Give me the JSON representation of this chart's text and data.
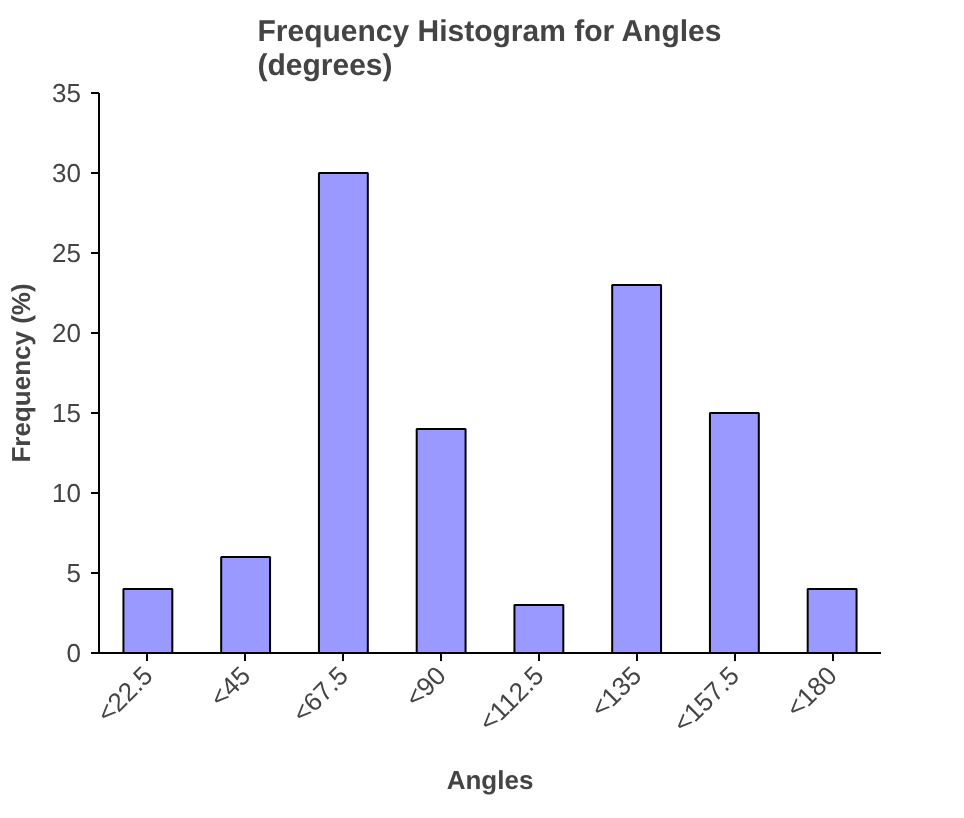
{
  "chart_data": {
    "type": "bar",
    "title": "Frequency Histogram for Angles\n(degrees)",
    "xlabel": "Angles",
    "ylabel": "Frequency (%)",
    "categories": [
      "<22.5",
      "<45",
      "<67.5",
      "<90",
      "<112.5",
      "<135",
      "<157.5",
      "<180"
    ],
    "values": [
      4,
      6,
      30,
      14,
      3,
      23,
      15,
      4
    ],
    "color": "#9999ff",
    "ylim": [
      0,
      35
    ],
    "yticks": [
      0,
      5,
      10,
      15,
      20,
      25,
      30,
      35
    ],
    "grid": false
  }
}
